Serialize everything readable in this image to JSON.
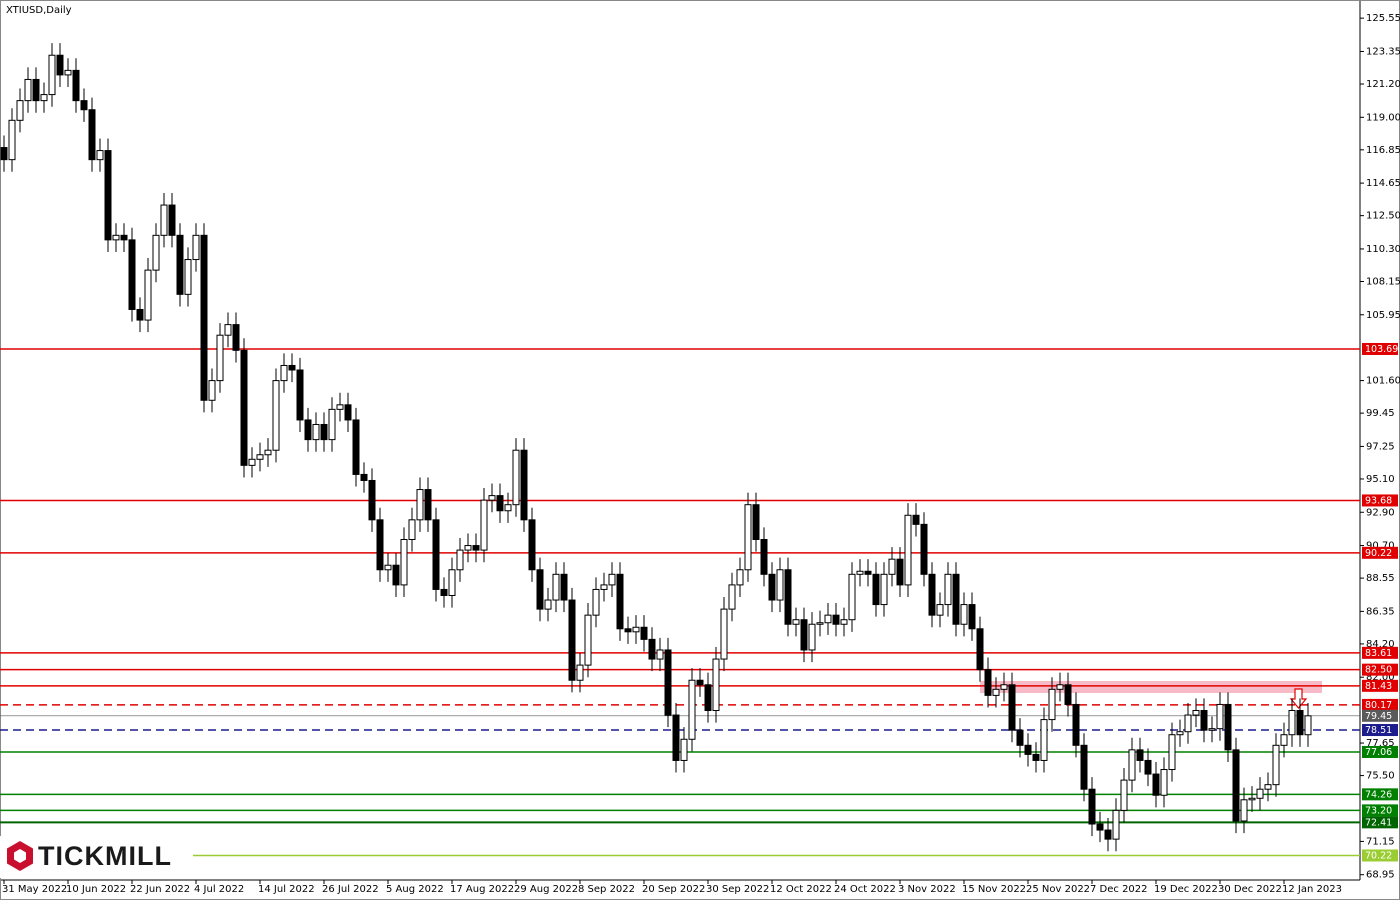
{
  "chart_data": {
    "type": "candlestick",
    "title": "XTIUSD,Daily",
    "brand": "TICKMILL",
    "categories": [
      "31 May 2022",
      null,
      null,
      null,
      null,
      null,
      null,
      null,
      "10 Jun 2022",
      null,
      null,
      null,
      null,
      null,
      null,
      null,
      "22 Jun 2022",
      null,
      null,
      null,
      null,
      null,
      null,
      null,
      "4 Jul 2022",
      null,
      null,
      null,
      null,
      null,
      null,
      null,
      "14 Jul 2022",
      null,
      null,
      null,
      null,
      null,
      null,
      null,
      "26 Jul 2022",
      null,
      null,
      null,
      null,
      null,
      null,
      null,
      "5 Aug 2022",
      null,
      null,
      null,
      null,
      null,
      null,
      null,
      "17 Aug 2022",
      null,
      null,
      null,
      null,
      null,
      null,
      null,
      "29 Aug 2022",
      null,
      null,
      null,
      null,
      null,
      null,
      null,
      "8 Sep 2022",
      null,
      null,
      null,
      null,
      null,
      null,
      null,
      "20 Sep 2022",
      null,
      null,
      null,
      null,
      null,
      null,
      null,
      "30 Sep 2022",
      null,
      null,
      null,
      null,
      null,
      null,
      null,
      "12 Oct 2022",
      null,
      null,
      null,
      null,
      null,
      null,
      null,
      "24 Oct 2022",
      null,
      null,
      null,
      null,
      null,
      null,
      null,
      "3 Nov 2022",
      null,
      null,
      null,
      null,
      null,
      null,
      null,
      "15 Nov 2022",
      null,
      null,
      null,
      null,
      null,
      null,
      null,
      "25 Nov 2022",
      null,
      null,
      null,
      null,
      null,
      null,
      null,
      "7 Dec 2022",
      null,
      null,
      null,
      null,
      null,
      null,
      null,
      "19 Dec 2022",
      null,
      null,
      null,
      null,
      null,
      null,
      null,
      "30 Dec 2022",
      null,
      null,
      null,
      null,
      null,
      null,
      null,
      "12 Jan 2023",
      null,
      null,
      null
    ],
    "open": [
      117.0,
      116.2,
      118.8,
      120.1,
      121.5,
      120.1,
      120.5,
      123.1,
      121.8,
      122.1,
      120.1,
      119.5,
      116.2,
      116.8,
      110.9,
      111.2,
      110.9,
      106.3,
      105.6,
      108.9,
      111.2,
      113.2,
      111.2,
      107.3,
      109.6,
      111.2,
      100.3,
      101.6,
      104.6,
      105.3,
      103.6,
      96.0,
      96.4,
      96.7,
      97.0,
      101.6,
      102.6,
      102.3,
      99.0,
      97.7,
      98.7,
      97.7,
      99.7,
      100.0,
      99.0,
      95.4,
      95.0,
      92.4,
      89.1,
      89.4,
      88.1,
      91.1,
      92.4,
      94.4,
      92.4,
      87.8,
      87.4,
      89.1,
      90.4,
      90.7,
      90.4,
      93.7,
      94.0,
      93.0,
      93.4,
      97.0,
      92.4,
      89.1,
      86.5,
      87.1,
      88.8,
      87.1,
      81.8,
      82.8,
      86.1,
      87.8,
      88.1,
      88.8,
      85.2,
      85.0,
      85.3,
      84.5,
      83.2,
      83.8,
      79.5,
      76.5,
      77.9,
      81.8,
      81.5,
      79.8,
      83.2,
      86.5,
      88.1,
      89.1,
      93.4,
      91.1,
      88.8,
      87.1,
      89.1,
      85.5,
      85.8,
      83.8,
      85.5,
      85.6,
      86.1,
      85.5,
      85.8,
      88.8,
      89.0,
      88.8,
      86.8,
      88.8,
      89.8,
      88.1,
      92.7,
      92.1,
      88.8,
      86.1,
      86.8,
      88.8,
      85.5,
      86.8,
      85.2,
      82.5,
      80.8,
      81.2,
      81.5,
      78.5,
      77.5,
      76.9,
      76.5,
      79.2,
      81.2,
      81.5,
      80.2,
      77.5,
      74.6,
      72.3,
      71.9,
      71.3,
      73.2,
      75.2,
      77.2,
      76.5,
      75.6,
      74.2,
      75.9,
      78.2,
      78.4,
      79.5,
      79.8,
      78.5,
      78.6,
      80.2,
      77.2,
      72.5,
      73.9,
      74.0,
      74.6,
      74.9,
      77.5,
      78.2,
      79.8,
      78.2
    ],
    "high": [
      117.8,
      119.6,
      120.9,
      122.3,
      122.3,
      121.3,
      123.9,
      123.9,
      122.9,
      122.9,
      120.9,
      120.3,
      117.6,
      117.6,
      112.0,
      112.0,
      111.7,
      107.1,
      109.7,
      112.0,
      114.0,
      114.0,
      112.0,
      110.4,
      112.0,
      112.0,
      102.4,
      105.4,
      106.1,
      106.1,
      104.4,
      97.2,
      97.5,
      97.8,
      102.4,
      103.4,
      103.4,
      103.1,
      99.8,
      99.5,
      99.5,
      100.5,
      100.8,
      100.8,
      99.8,
      96.2,
      95.8,
      93.2,
      90.2,
      90.2,
      91.9,
      93.2,
      95.2,
      95.2,
      93.2,
      88.6,
      89.9,
      91.2,
      91.5,
      91.5,
      94.5,
      94.8,
      94.8,
      94.2,
      97.8,
      97.8,
      93.2,
      89.9,
      87.9,
      89.6,
      89.6,
      87.9,
      83.6,
      86.9,
      88.6,
      88.9,
      89.6,
      89.6,
      86.0,
      86.1,
      86.1,
      85.3,
      84.6,
      84.6,
      80.3,
      78.7,
      82.6,
      82.6,
      82.3,
      84.0,
      87.3,
      88.9,
      89.9,
      94.2,
      94.2,
      91.9,
      89.6,
      89.9,
      89.9,
      86.6,
      86.6,
      86.3,
      86.4,
      86.9,
      86.9,
      86.6,
      89.6,
      89.8,
      89.8,
      89.6,
      89.6,
      90.6,
      90.6,
      93.5,
      93.5,
      92.9,
      89.6,
      87.6,
      89.6,
      89.6,
      87.6,
      87.6,
      86.0,
      83.3,
      82.0,
      82.3,
      82.3,
      79.3,
      78.3,
      77.7,
      80.0,
      82.0,
      82.3,
      82.3,
      81.0,
      78.3,
      75.4,
      73.1,
      72.7,
      74.0,
      76.0,
      78.0,
      78.0,
      77.3,
      76.4,
      76.7,
      79.0,
      79.2,
      80.3,
      80.6,
      80.6,
      79.4,
      81.0,
      81.0,
      78.0,
      74.7,
      74.8,
      75.4,
      75.7,
      78.3,
      79.0,
      80.6,
      80.6,
      80.3
    ],
    "low": [
      115.4,
      115.4,
      118.0,
      119.3,
      119.3,
      119.3,
      119.7,
      121.0,
      121.0,
      119.3,
      118.7,
      115.4,
      115.4,
      110.1,
      110.1,
      110.1,
      105.5,
      104.8,
      104.8,
      108.1,
      110.4,
      110.4,
      106.5,
      106.5,
      108.8,
      99.5,
      99.5,
      100.8,
      103.8,
      102.8,
      95.2,
      95.2,
      95.6,
      95.9,
      96.2,
      100.8,
      101.5,
      98.2,
      96.9,
      96.9,
      96.9,
      96.9,
      98.9,
      98.2,
      94.6,
      94.2,
      91.6,
      88.3,
      88.3,
      87.3,
      87.3,
      90.3,
      91.6,
      91.6,
      87.0,
      86.6,
      86.6,
      88.3,
      89.6,
      89.6,
      89.6,
      92.9,
      92.2,
      92.2,
      92.6,
      91.6,
      88.3,
      85.7,
      85.7,
      86.3,
      86.3,
      81.0,
      81.0,
      82.0,
      85.3,
      87.0,
      87.3,
      84.4,
      84.2,
      84.2,
      83.7,
      82.4,
      82.4,
      78.7,
      75.7,
      75.7,
      77.1,
      80.7,
      79.0,
      79.0,
      82.4,
      85.7,
      87.3,
      88.3,
      90.3,
      88.0,
      86.3,
      86.3,
      84.7,
      84.7,
      83.0,
      83.0,
      84.7,
      84.8,
      84.7,
      84.7,
      85.0,
      88.0,
      88.0,
      86.0,
      86.0,
      88.0,
      87.3,
      87.3,
      91.3,
      88.0,
      85.3,
      85.3,
      86.0,
      84.7,
      84.7,
      84.4,
      81.7,
      80.0,
      80.0,
      80.4,
      77.7,
      76.7,
      76.1,
      75.7,
      75.7,
      78.4,
      80.4,
      79.4,
      76.7,
      73.8,
      71.5,
      71.1,
      70.5,
      70.5,
      72.4,
      74.4,
      75.7,
      74.8,
      73.4,
      73.4,
      75.1,
      77.4,
      77.6,
      78.7,
      77.7,
      77.7,
      77.8,
      76.4,
      71.7,
      71.7,
      73.1,
      73.2,
      73.8,
      74.1,
      76.7,
      77.4,
      77.4,
      77.4
    ],
    "close": [
      116.2,
      118.8,
      120.1,
      121.5,
      120.1,
      120.5,
      123.1,
      121.8,
      122.1,
      120.1,
      119.5,
      116.2,
      116.8,
      110.9,
      111.2,
      110.9,
      106.3,
      105.6,
      108.9,
      111.2,
      113.2,
      111.2,
      107.3,
      109.6,
      111.2,
      100.3,
      101.6,
      104.6,
      105.3,
      103.6,
      96.0,
      96.4,
      96.7,
      97.0,
      101.6,
      102.6,
      102.3,
      99.0,
      97.7,
      98.7,
      97.7,
      99.7,
      100.0,
      99.0,
      95.4,
      95.0,
      92.4,
      89.1,
      89.4,
      88.1,
      91.1,
      92.4,
      94.4,
      92.4,
      87.8,
      87.4,
      89.1,
      90.4,
      90.7,
      90.4,
      93.7,
      94.0,
      93.0,
      93.4,
      97.0,
      92.4,
      89.1,
      86.5,
      87.1,
      88.8,
      87.1,
      81.8,
      82.8,
      86.1,
      87.8,
      88.1,
      88.8,
      85.2,
      85.0,
      85.3,
      84.5,
      83.2,
      83.8,
      79.5,
      76.5,
      77.9,
      81.8,
      81.5,
      79.8,
      83.2,
      86.5,
      88.1,
      89.1,
      93.4,
      91.1,
      88.8,
      87.1,
      89.1,
      85.5,
      85.8,
      83.8,
      85.5,
      85.6,
      86.1,
      85.5,
      85.8,
      88.8,
      89.0,
      88.8,
      86.8,
      88.8,
      89.8,
      88.1,
      92.7,
      92.1,
      88.8,
      86.1,
      86.8,
      88.8,
      85.5,
      86.8,
      85.2,
      82.5,
      80.8,
      81.2,
      81.5,
      78.5,
      77.5,
      76.9,
      76.5,
      79.2,
      81.2,
      81.5,
      80.2,
      77.5,
      74.6,
      72.3,
      71.9,
      71.3,
      73.2,
      75.2,
      77.2,
      76.5,
      75.6,
      74.2,
      75.9,
      78.2,
      78.4,
      79.5,
      79.8,
      78.5,
      78.6,
      80.2,
      77.2,
      72.5,
      73.9,
      74.0,
      74.6,
      74.9,
      77.5,
      78.2,
      79.8,
      78.2,
      79.45
    ],
    "ylim": [
      68.6,
      126.75
    ],
    "yticks": [
      125.55,
      123.35,
      {
        "value": 121.2,
        "label": "121.20"
      },
      {
        "value": 119,
        "label": "119.00"
      },
      116.85,
      114.65,
      {
        "value": 112.5,
        "label": "112.50"
      },
      {
        "value": 110.3,
        "label": "110.30"
      },
      108.15,
      105.95,
      {
        "value": 101.6,
        "label": "101.60"
      },
      99.45,
      97.25,
      {
        "value": 95.1,
        "label": "95.10"
      },
      {
        "value": 92.9,
        "label": "92.90"
      },
      {
        "value": 90.7,
        "label": "90.70"
      },
      88.55,
      86.35,
      {
        "value": 84.2,
        "label": "84.20"
      },
      {
        "value": 82,
        "label": "82.00"
      },
      77.65,
      {
        "value": 75.5,
        "label": "75.50"
      },
      71.15,
      68.95
    ],
    "levels": [
      {
        "value": 103.69,
        "color": "#e00000",
        "style": "solid"
      },
      {
        "value": 93.68,
        "color": "#e00000",
        "style": "solid"
      },
      {
        "value": 90.22,
        "color": "#e00000",
        "style": "solid"
      },
      {
        "value": 83.61,
        "color": "#e00000",
        "style": "solid"
      },
      {
        "value": 82.5,
        "label": "82.50",
        "color": "#e00000",
        "style": "solid"
      },
      {
        "value": 81.43,
        "color": "#e00000",
        "style": "solid"
      },
      {
        "value": 80.17,
        "color": "#e00000",
        "style": "dashed"
      },
      {
        "value": 79.45,
        "color": "#5a5a5a",
        "style": "thin"
      },
      {
        "value": 78.51,
        "color": "#1c1c8c",
        "style": "dashed"
      },
      {
        "value": 77.06,
        "color": "#008000",
        "style": "solid"
      },
      {
        "value": 74.26,
        "color": "#008000",
        "style": "solid"
      },
      {
        "value": 73.2,
        "label": "73.20",
        "color": "#008000",
        "style": "solid"
      },
      {
        "value": 72.41,
        "color": "#006400",
        "style": "thick"
      },
      {
        "value": 70.22,
        "color": "#9acd32",
        "style": "solid"
      }
    ]
  }
}
